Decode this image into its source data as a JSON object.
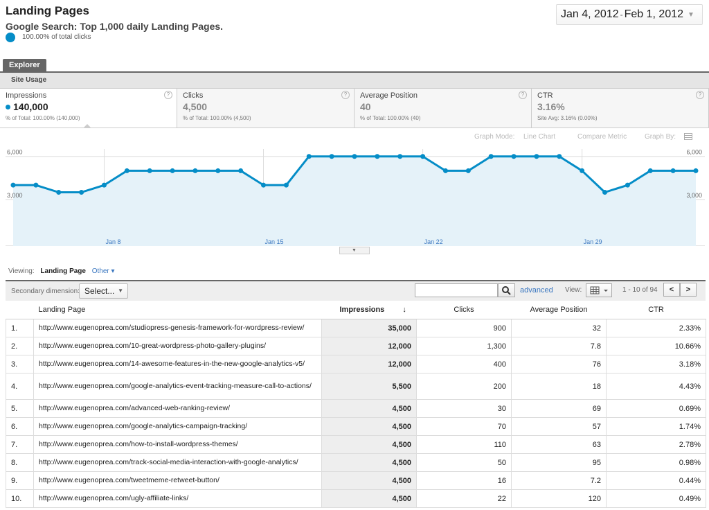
{
  "header": {
    "title": "Landing Pages",
    "subtitle": "Google Search: Top 1,000 daily Landing Pages.",
    "total_clicks": "100.00% of total clicks",
    "date_start": "Jan 4, 2012",
    "date_sep": "-",
    "date_end": "Feb 1, 2012"
  },
  "tabs": {
    "explorer": "Explorer",
    "site_usage": "Site Usage"
  },
  "metrics": [
    {
      "name": "Impressions",
      "value": "140,000",
      "sub": "% of Total: 100.00% (140,000)",
      "active": true
    },
    {
      "name": "Clicks",
      "value": "4,500",
      "sub": "% of Total: 100.00% (4,500)",
      "active": false
    },
    {
      "name": "Average Position",
      "value": "40",
      "sub": "% of Total: 100.00% (40)",
      "active": false
    },
    {
      "name": "CTR",
      "value": "3.16%",
      "sub": "Site Avg: 3.16% (0.00%)",
      "active": false
    }
  ],
  "help_icon": "?",
  "graph_controls": {
    "mode_label": "Graph Mode:",
    "mode_value": "Line Chart",
    "compare": "Compare Metric",
    "graph_by": "Graph By:"
  },
  "chart_data": {
    "type": "area",
    "series": [
      {
        "name": "Impressions",
        "color": "#058dc7",
        "values": [
          4000,
          4000,
          3500,
          3500,
          4000,
          5000,
          5000,
          5000,
          5000,
          5000,
          5000,
          4000,
          4000,
          6000,
          6000,
          6000,
          6000,
          6000,
          6000,
          5000,
          5000,
          6000,
          6000,
          6000,
          6000,
          5000,
          3500,
          4000,
          5000,
          5000,
          5000
        ]
      }
    ],
    "ylim": [
      0,
      7000
    ],
    "yticks": [
      "6,000",
      "3,000"
    ],
    "xticks": [
      {
        "label": "Jan 8",
        "index": 4
      },
      {
        "label": "Jan 15",
        "index": 11
      },
      {
        "label": "Jan 22",
        "index": 18
      },
      {
        "label": "Jan 29",
        "index": 25
      }
    ]
  },
  "viewing": {
    "label": "Viewing:",
    "current": "Landing Page",
    "other": "Other"
  },
  "toolbar": {
    "secondary_label": "Secondary dimension:",
    "select_label": "Select...",
    "search_placeholder": "",
    "advanced": "advanced",
    "view_label": "View:",
    "pager": "1 - 10 of 94",
    "prev": "<",
    "next": ">"
  },
  "table": {
    "columns": [
      "Landing Page",
      "Impressions",
      "Clicks",
      "Average Position",
      "CTR"
    ],
    "sort_arrow": "↓",
    "rows": [
      {
        "idx": "1.",
        "url": "http://www.eugenoprea.com/studiopress-genesis-framework-for-wordpress-review/",
        "impressions": "35,000",
        "clicks": "900",
        "pos": "32",
        "ctr": "2.33%"
      },
      {
        "idx": "2.",
        "url": "http://www.eugenoprea.com/10-great-wordpress-photo-gallery-plugins/",
        "impressions": "12,000",
        "clicks": "1,300",
        "pos": "7.8",
        "ctr": "10.66%"
      },
      {
        "idx": "3.",
        "url": "http://www.eugenoprea.com/14-awesome-features-in-the-new-google-analytics-v5/",
        "impressions": "12,000",
        "clicks": "400",
        "pos": "76",
        "ctr": "3.18%"
      },
      {
        "idx": "4.",
        "url": "http://www.eugenoprea.com/google-analytics-event-tracking-measure-call-to-actions/",
        "impressions": "5,500",
        "clicks": "200",
        "pos": "18",
        "ctr": "4.43%"
      },
      {
        "idx": "5.",
        "url": "http://www.eugenoprea.com/advanced-web-ranking-review/",
        "impressions": "4,500",
        "clicks": "30",
        "pos": "69",
        "ctr": "0.69%"
      },
      {
        "idx": "6.",
        "url": "http://www.eugenoprea.com/google-analytics-campaign-tracking/",
        "impressions": "4,500",
        "clicks": "70",
        "pos": "57",
        "ctr": "1.74%"
      },
      {
        "idx": "7.",
        "url": "http://www.eugenoprea.com/how-to-install-wordpress-themes/",
        "impressions": "4,500",
        "clicks": "110",
        "pos": "63",
        "ctr": "2.78%"
      },
      {
        "idx": "8.",
        "url": "http://www.eugenoprea.com/track-social-media-interaction-with-google-analytics/",
        "impressions": "4,500",
        "clicks": "50",
        "pos": "95",
        "ctr": "0.98%"
      },
      {
        "idx": "9.",
        "url": "http://www.eugenoprea.com/tweetmeme-retweet-button/",
        "impressions": "4,500",
        "clicks": "16",
        "pos": "7.2",
        "ctr": "0.44%"
      },
      {
        "idx": "10.",
        "url": "http://www.eugenoprea.com/ugly-affiliate-links/",
        "impressions": "4,500",
        "clicks": "22",
        "pos": "120",
        "ctr": "0.49%"
      }
    ]
  }
}
